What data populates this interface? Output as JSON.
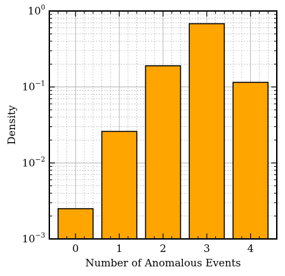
{
  "chart_data": {
    "type": "bar",
    "categories": [
      "0",
      "1",
      "2",
      "3",
      "4"
    ],
    "values": [
      0.0025,
      0.026,
      0.19,
      0.68,
      0.115
    ],
    "title": "",
    "xlabel": "Number of Anomalous Events",
    "ylabel": "Density",
    "yscale": "log",
    "ylim": [
      0.001,
      1
    ],
    "ytick_labels": [
      {
        "base": "10",
        "exp": "−3"
      },
      {
        "base": "10",
        "exp": "−2"
      },
      {
        "base": "10",
        "exp": "−1"
      },
      {
        "base": "10",
        "exp": "0"
      }
    ],
    "grid": true,
    "legend": "none",
    "colors": {
      "bar_fill": "#FFA500",
      "bar_edge": "#000000",
      "grid": "#aaaaaa",
      "axes": "#000000"
    }
  }
}
